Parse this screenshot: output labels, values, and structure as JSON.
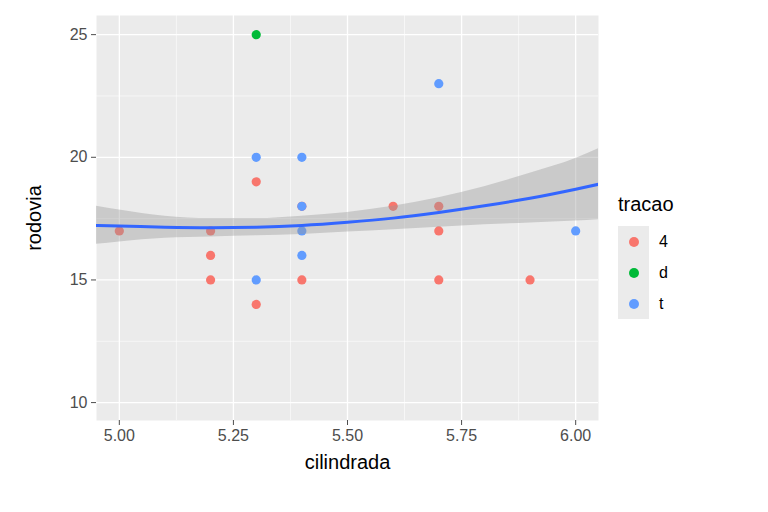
{
  "chart_data": {
    "type": "scatter",
    "x_label": "cilindrada",
    "y_label": "rodovia",
    "legend_title": "tracao",
    "legend": "right",
    "grid": true,
    "xlim": [
      4.95,
      6.05
    ],
    "xticks": [
      {
        "value": 5,
        "label": "5.00"
      },
      {
        "value": 5.25,
        "label": "5.25"
      },
      {
        "value": 5.5,
        "label": "5.50"
      },
      {
        "value": 5.75,
        "label": "5.75"
      },
      {
        "value": 6,
        "label": "6.00"
      }
    ],
    "ylim": [
      9.27,
      25.78
    ],
    "yticks": [
      10,
      15,
      20,
      25
    ],
    "series": [
      {
        "name": "4",
        "color": "#F8766D",
        "x": [
          5.0,
          5.2,
          5.2,
          5.2,
          5.3,
          5.3,
          5.4,
          5.6,
          5.7,
          5.7,
          5.7,
          5.9,
          5.4
        ],
        "values": [
          17,
          17,
          16,
          15,
          19,
          14,
          15,
          18,
          18,
          17,
          15,
          15,
          18
        ]
      },
      {
        "name": "d",
        "color": "#00BA38",
        "x": [
          5.3
        ],
        "values": [
          25
        ]
      },
      {
        "name": "t",
        "color": "#619CFF",
        "x": [
          5.3,
          5.3,
          5.4,
          5.4,
          5.4,
          5.4,
          5.7,
          6.0
        ],
        "values": [
          20,
          15,
          20,
          18,
          17,
          16,
          23,
          17
        ]
      }
    ],
    "fit": {
      "color": "#3366FF",
      "x": [
        4.95,
        5.0,
        5.1,
        5.2,
        5.3,
        5.4,
        5.5,
        5.6,
        5.7,
        5.8,
        5.9,
        6.0,
        6.05
      ],
      "values": [
        17.22,
        17.2,
        17.15,
        17.13,
        17.15,
        17.22,
        17.35,
        17.52,
        17.75,
        18.02,
        18.33,
        18.7,
        18.9
      ],
      "lower": [
        16.45,
        16.55,
        16.7,
        16.75,
        16.8,
        16.85,
        16.95,
        17.05,
        17.15,
        17.25,
        17.32,
        17.4,
        17.45
      ],
      "upper": [
        18.0,
        17.85,
        17.6,
        17.5,
        17.5,
        17.6,
        17.75,
        18.0,
        18.35,
        18.8,
        19.35,
        19.95,
        20.35
      ]
    }
  }
}
